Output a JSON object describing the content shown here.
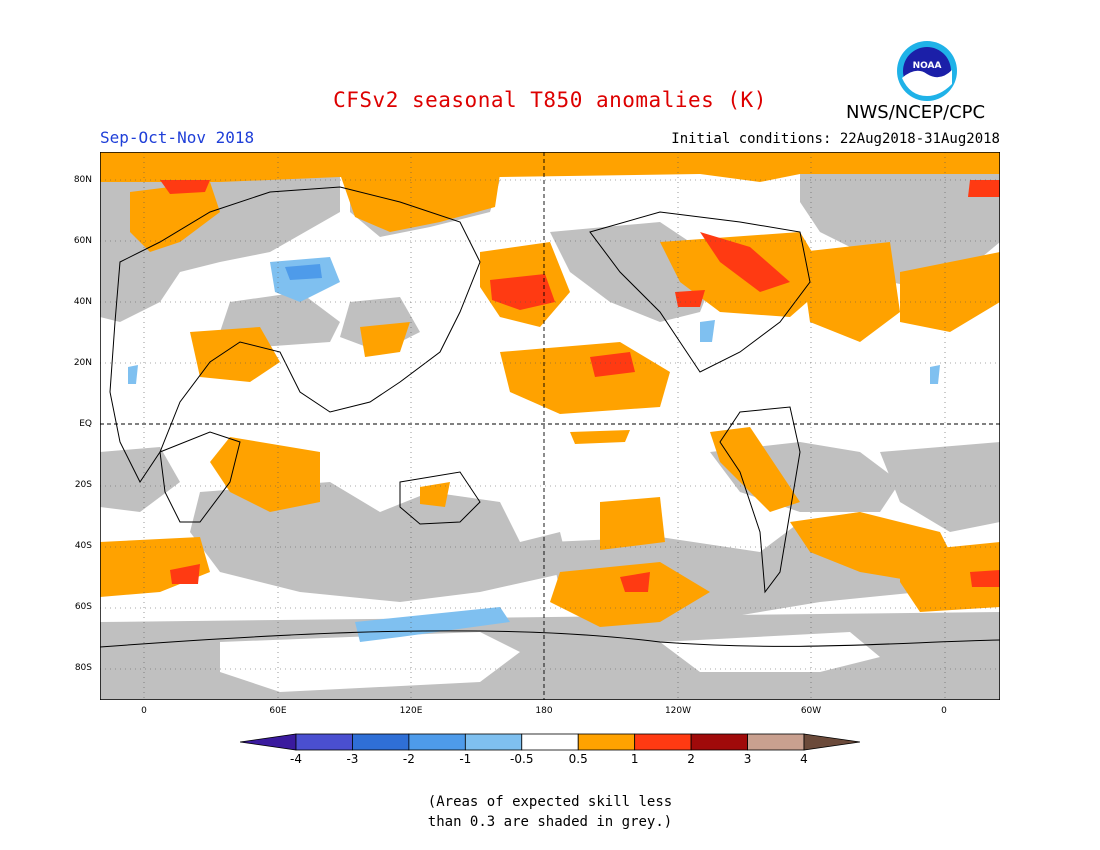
{
  "title": "CFSv2 seasonal T850 anomalies (K)",
  "period": "Sep-Oct-Nov 2018",
  "initial_conditions": "Initial conditions: 22Aug2018-31Aug2018",
  "agency": "NWS/NCEP/CPC",
  "logo_text": "NOAA",
  "map": {
    "lat_labels": [
      "80N",
      "60N",
      "40N",
      "20N",
      "EQ",
      "20S",
      "40S",
      "60S",
      "80S"
    ],
    "lon_labels": [
      "0",
      "60E",
      "120E",
      "180",
      "120W",
      "60W",
      "0"
    ]
  },
  "colorbar": {
    "labels": [
      "-4",
      "-3",
      "-2",
      "-1",
      "-0.5",
      "0.5",
      "1",
      "2",
      "3",
      "4"
    ],
    "colors": [
      "#3a1a9e",
      "#4a4fd0",
      "#2f6fd6",
      "#4e9bea",
      "#7fc0f0",
      "#ffffff",
      "#ffa200",
      "#ff3a12",
      "#a00a0a",
      "#c9a08f",
      "#6b4a3a"
    ]
  },
  "note_line1": "(Areas of expected skill less",
  "note_line2": "than 0.3 are shaded in grey.)"
}
